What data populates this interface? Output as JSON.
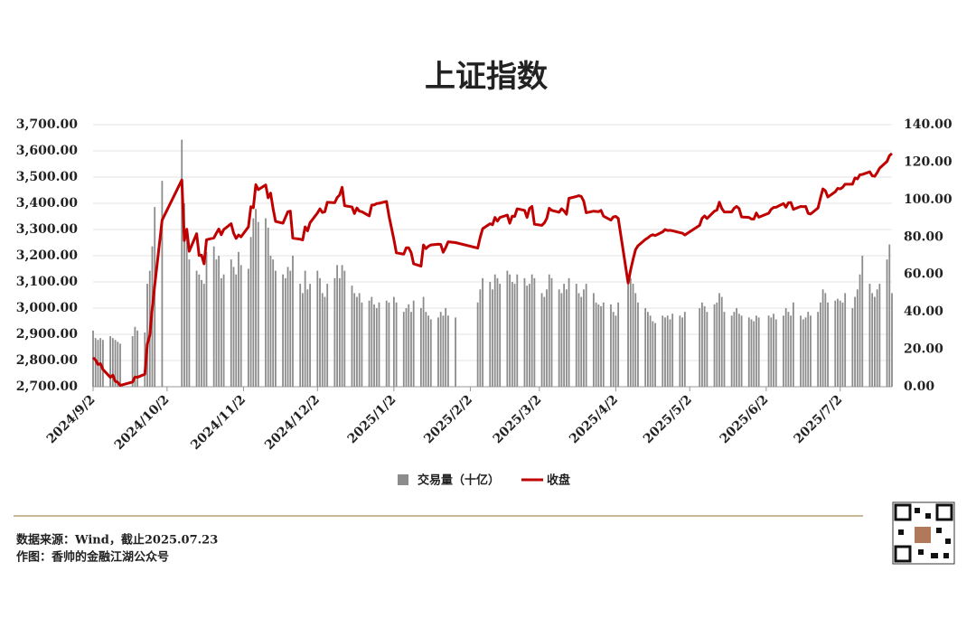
{
  "chart_data": {
    "type": "bar-line",
    "title": "上证指数",
    "source": "数据来源：Wind，截止2025.07.23",
    "author": "作图：香帅的金融江湖公众号",
    "x": [
      "2024/9/2",
      "2024/9/3",
      "2024/9/4",
      "2024/9/5",
      "2024/9/6",
      "2024/9/9",
      "2024/9/10",
      "2024/9/11",
      "2024/9/12",
      "2024/9/13",
      "2024/9/18",
      "2024/9/19",
      "2024/9/20",
      "2024/9/23",
      "2024/9/24",
      "2024/9/25",
      "2024/9/26",
      "2024/9/27",
      "2024/9/30",
      "2024/10/8",
      "2024/10/9",
      "2024/10/10",
      "2024/10/11",
      "2024/10/14",
      "2024/10/15",
      "2024/10/16",
      "2024/10/17",
      "2024/10/18",
      "2024/10/21",
      "2024/10/22",
      "2024/10/23",
      "2024/10/24",
      "2024/10/25",
      "2024/10/28",
      "2024/10/29",
      "2024/10/30",
      "2024/10/31",
      "2024/11/1",
      "2024/11/4",
      "2024/11/5",
      "2024/11/6",
      "2024/11/7",
      "2024/11/8",
      "2024/11/11",
      "2024/11/12",
      "2024/11/13",
      "2024/11/14",
      "2024/11/15",
      "2024/11/18",
      "2024/11/19",
      "2024/11/20",
      "2024/11/21",
      "2024/11/22",
      "2024/11/25",
      "2024/11/26",
      "2024/11/27",
      "2024/11/28",
      "2024/11/29",
      "2024/12/2",
      "2024/12/3",
      "2024/12/4",
      "2024/12/5",
      "2024/12/6",
      "2024/12/9",
      "2024/12/10",
      "2024/12/11",
      "2024/12/12",
      "2024/12/13",
      "2024/12/16",
      "2024/12/17",
      "2024/12/18",
      "2024/12/19",
      "2024/12/20",
      "2024/12/23",
      "2024/12/24",
      "2024/12/25",
      "2024/12/26",
      "2024/12/27",
      "2024/12/30",
      "2024/12/31",
      "2025/1/2",
      "2025/1/3",
      "2025/1/6",
      "2025/1/7",
      "2025/1/8",
      "2025/1/9",
      "2025/1/10",
      "2025/1/13",
      "2025/1/14",
      "2025/1/15",
      "2025/1/16",
      "2025/1/17",
      "2025/1/20",
      "2025/1/21",
      "2025/1/22",
      "2025/1/23",
      "2025/1/24",
      "2025/1/27",
      "2025/2/5",
      "2025/2/6",
      "2025/2/7",
      "2025/2/10",
      "2025/2/11",
      "2025/2/12",
      "2025/2/13",
      "2025/2/14",
      "2025/2/17",
      "2025/2/18",
      "2025/2/19",
      "2025/2/20",
      "2025/2/21",
      "2025/2/24",
      "2025/2/25",
      "2025/2/26",
      "2025/2/27",
      "2025/2/28",
      "2025/3/3",
      "2025/3/4",
      "2025/3/5",
      "2025/3/6",
      "2025/3/7",
      "2025/3/10",
      "2025/3/11",
      "2025/3/12",
      "2025/3/13",
      "2025/3/14",
      "2025/3/17",
      "2025/3/18",
      "2025/3/19",
      "2025/3/20",
      "2025/3/21",
      "2025/3/24",
      "2025/3/25",
      "2025/3/26",
      "2025/3/27",
      "2025/3/28",
      "2025/3/31",
      "2025/4/1",
      "2025/4/2",
      "2025/4/3",
      "2025/4/7",
      "2025/4/8",
      "2025/4/9",
      "2025/4/10",
      "2025/4/11",
      "2025/4/14",
      "2025/4/15",
      "2025/4/16",
      "2025/4/17",
      "2025/4/18",
      "2025/4/21",
      "2025/4/22",
      "2025/4/23",
      "2025/4/24",
      "2025/4/25",
      "2025/4/28",
      "2025/4/29",
      "2025/4/30",
      "2025/5/6",
      "2025/5/7",
      "2025/5/8",
      "2025/5/9",
      "2025/5/12",
      "2025/5/13",
      "2025/5/14",
      "2025/5/15",
      "2025/5/16",
      "2025/5/19",
      "2025/5/20",
      "2025/5/21",
      "2025/5/22",
      "2025/5/23",
      "2025/5/26",
      "2025/5/27",
      "2025/5/28",
      "2025/5/29",
      "2025/5/30",
      "2025/6/3",
      "2025/6/4",
      "2025/6/5",
      "2025/6/6",
      "2025/6/9",
      "2025/6/10",
      "2025/6/11",
      "2025/6/12",
      "2025/6/13",
      "2025/6/16",
      "2025/6/17",
      "2025/6/18",
      "2025/6/19",
      "2025/6/20",
      "2025/6/23",
      "2025/6/24",
      "2025/6/25",
      "2025/6/26",
      "2025/6/27",
      "2025/6/30",
      "2025/7/1",
      "2025/7/2",
      "2025/7/3",
      "2025/7/4",
      "2025/7/7",
      "2025/7/8",
      "2025/7/9",
      "2025/7/10",
      "2025/7/11",
      "2025/7/14",
      "2025/7/15",
      "2025/7/16",
      "2025/7/17",
      "2025/7/18",
      "2025/7/21",
      "2025/7/22",
      "2025/7/23"
    ],
    "series": [
      {
        "name": "交易量（十亿）",
        "color": "#8c8c8c",
        "axis": "y2",
        "values": [
          30,
          26,
          25,
          26,
          25,
          27,
          26,
          25,
          24,
          23,
          27,
          32,
          30,
          29,
          55,
          62,
          75,
          96,
          110,
          132,
          98,
          80,
          68,
          62,
          60,
          57,
          55,
          72,
          75,
          68,
          70,
          58,
          60,
          68,
          64,
          60,
          72,
          65,
          63,
          80,
          90,
          95,
          88,
          90,
          85,
          70,
          68,
          62,
          60,
          58,
          64,
          62,
          70,
          55,
          50,
          62,
          52,
          55,
          62,
          58,
          50,
          48,
          55,
          58,
          65,
          58,
          65,
          62,
          54,
          50,
          48,
          50,
          45,
          46,
          48,
          44,
          42,
          45,
          46,
          45,
          48,
          45,
          40,
          42,
          44,
          40,
          46,
          42,
          48,
          40,
          38,
          36,
          37,
          40,
          38,
          42,
          38,
          37,
          45,
          52,
          58,
          56,
          52,
          60,
          58,
          55,
          62,
          60,
          56,
          55,
          60,
          58,
          54,
          55,
          60,
          58,
          50,
          48,
          52,
          60,
          58,
          52,
          50,
          55,
          52,
          58,
          55,
          50,
          48,
          52,
          55,
          50,
          45,
          44,
          43,
          45,
          44,
          40,
          38,
          45,
          60,
          58,
          55,
          50,
          45,
          42,
          40,
          38,
          35,
          34,
          38,
          37,
          38,
          36,
          39,
          38,
          37,
          40,
          42,
          45,
          43,
          40,
          44,
          45,
          50,
          48,
          40,
          38,
          40,
          42,
          39,
          38,
          37,
          36,
          35,
          38,
          37,
          38,
          37,
          39,
          36,
          38,
          42,
          40,
          38,
          45,
          38,
          36,
          37,
          40,
          38,
          40,
          45,
          52,
          50,
          45,
          46,
          47,
          46,
          45,
          50,
          42,
          48,
          52,
          60,
          70,
          55,
          50,
          48,
          52,
          55,
          68,
          76,
          50
        ]
      },
      {
        "name": "收盘",
        "color": "#c00000",
        "values": [
          2811,
          2802,
          2785,
          2788,
          2766,
          2736,
          2744,
          2721,
          2717,
          2705,
          2718,
          2737,
          2736,
          2748,
          2863,
          2896,
          3000,
          3087,
          3336,
          3489,
          3258,
          3301,
          3217,
          3284,
          3201,
          3202,
          3169,
          3261,
          3268,
          3286,
          3302,
          3280,
          3300,
          3322,
          3286,
          3266,
          3279,
          3272,
          3310,
          3387,
          3383,
          3471,
          3452,
          3470,
          3421,
          3439,
          3380,
          3331,
          3324,
          3346,
          3368,
          3370,
          3267,
          3263,
          3260,
          3310,
          3295,
          3326,
          3363,
          3379,
          3365,
          3368,
          3404,
          3402,
          3422,
          3432,
          3461,
          3391,
          3386,
          3361,
          3382,
          3370,
          3368,
          3352,
          3393,
          3394,
          3399,
          3400,
          3407,
          3352,
          3262,
          3211,
          3206,
          3230,
          3230,
          3212,
          3169,
          3160,
          3241,
          3227,
          3236,
          3241,
          3244,
          3243,
          3213,
          3231,
          3253,
          3250,
          3229,
          3270,
          3303,
          3322,
          3318,
          3346,
          3332,
          3346,
          3355,
          3324,
          3351,
          3350,
          3379,
          3373,
          3346,
          3380,
          3388,
          3320,
          3316,
          3325,
          3342,
          3381,
          3373,
          3366,
          3379,
          3371,
          3358,
          3419,
          3426,
          3429,
          3426,
          3408,
          3364,
          3370,
          3369,
          3368,
          3373,
          3351,
          3336,
          3348,
          3350,
          3342,
          3096,
          3145,
          3186,
          3223,
          3238,
          3262,
          3268,
          3276,
          3280,
          3277,
          3291,
          3300,
          3296,
          3297,
          3295,
          3288,
          3286,
          3279,
          3316,
          3343,
          3352,
          3342,
          3370,
          3374,
          3404,
          3380,
          3367,
          3367,
          3381,
          3388,
          3380,
          3348,
          3346,
          3340,
          3340,
          3363,
          3347,
          3362,
          3377,
          3384,
          3385,
          3399,
          3385,
          3402,
          3403,
          3377,
          3388,
          3387,
          3388,
          3362,
          3359,
          3382,
          3420,
          3455,
          3448,
          3424,
          3444,
          3457,
          3455,
          3461,
          3473,
          3473,
          3497,
          3493,
          3509,
          3510,
          3520,
          3505,
          3503,
          3517,
          3534,
          3560,
          3582,
          3590
        ]
      }
    ],
    "xlim": [
      "2024/9/2",
      "2025/7/23"
    ],
    "xticks": [
      "2024/9/2",
      "2024/10/2",
      "2024/11/2",
      "2024/12/2",
      "2025/1/2",
      "2025/2/2",
      "2025/3/2",
      "2025/4/2",
      "2025/5/2",
      "2025/6/2",
      "2025/7/2"
    ],
    "ylim": [
      2700,
      3700
    ],
    "yticks": [
      {
        "value": 2700,
        "label": "2,700.00"
      },
      {
        "value": 2800,
        "label": "2,800.00"
      },
      {
        "value": 2900,
        "label": "2,900.00"
      },
      {
        "value": 3000,
        "label": "3,000.00"
      },
      {
        "value": 3100,
        "label": "3,100.00"
      },
      {
        "value": 3200,
        "label": "3,200.00"
      },
      {
        "value": 3300,
        "label": "3,300.00"
      },
      {
        "value": 3400,
        "label": "3,400.00"
      },
      {
        "value": 3500,
        "label": "3,500.00"
      },
      {
        "value": 3600,
        "label": "3,600.00"
      },
      {
        "value": 3700,
        "label": "3,700.00"
      }
    ],
    "y2lim": [
      0,
      140
    ],
    "y2ticks": [
      {
        "value": 0,
        "label": "0.00"
      },
      {
        "value": 20,
        "label": "20.00"
      },
      {
        "value": 40,
        "label": "40.00"
      },
      {
        "value": 60,
        "label": "60.00"
      },
      {
        "value": 80,
        "label": "80.00"
      },
      {
        "value": 100,
        "label": "100.00"
      },
      {
        "value": 120,
        "label": "120.00"
      },
      {
        "value": 140,
        "label": "140.00"
      }
    ],
    "grid": true,
    "legend": "bottom"
  }
}
